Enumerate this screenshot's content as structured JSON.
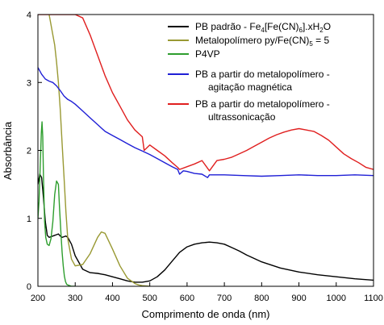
{
  "chart_data": {
    "type": "line",
    "xlabel": "Comprimento de onda (nm)",
    "ylabel": "Absorbância",
    "xlim": [
      200,
      1100
    ],
    "ylim": [
      0,
      4
    ],
    "xticks": [
      200,
      300,
      400,
      500,
      600,
      700,
      800,
      900,
      1000,
      1100
    ],
    "yticks": [
      0,
      1,
      2,
      3,
      4
    ],
    "grid": false,
    "legend_position": "top-right",
    "series": [
      {
        "name": "PB padrão - Fe4[Fe(CN)6].xH2O",
        "color": "#000000",
        "x": [
          200,
          205,
          210,
          215,
          220,
          225,
          230,
          235,
          240,
          245,
          250,
          255,
          260,
          265,
          270,
          275,
          280,
          290,
          300,
          320,
          340,
          360,
          380,
          400,
          420,
          440,
          460,
          480,
          500,
          520,
          540,
          560,
          580,
          600,
          620,
          640,
          660,
          680,
          700,
          720,
          740,
          760,
          780,
          800,
          850,
          900,
          950,
          1000,
          1050,
          1100
        ],
        "y": [
          1.5,
          1.65,
          1.6,
          1.3,
          0.95,
          0.75,
          0.72,
          0.73,
          0.74,
          0.75,
          0.76,
          0.77,
          0.74,
          0.72,
          0.73,
          0.74,
          0.72,
          0.62,
          0.45,
          0.25,
          0.2,
          0.19,
          0.17,
          0.14,
          0.11,
          0.08,
          0.06,
          0.06,
          0.08,
          0.14,
          0.24,
          0.37,
          0.5,
          0.58,
          0.62,
          0.64,
          0.65,
          0.64,
          0.62,
          0.57,
          0.52,
          0.46,
          0.41,
          0.36,
          0.27,
          0.21,
          0.17,
          0.14,
          0.11,
          0.09
        ]
      },
      {
        "name": "Metalopolímero py/Fe(CN)5 = 5",
        "color": "#999933",
        "x": [
          230,
          235,
          240,
          245,
          250,
          255,
          260,
          265,
          270,
          275,
          280,
          290,
          300,
          320,
          340,
          360,
          370,
          380,
          400,
          420,
          440,
          460,
          470,
          480,
          500
        ],
        "y": [
          4.0,
          3.85,
          3.7,
          3.55,
          3.3,
          3.0,
          2.6,
          2.1,
          1.6,
          1.1,
          0.7,
          0.4,
          0.3,
          0.32,
          0.48,
          0.72,
          0.8,
          0.78,
          0.55,
          0.3,
          0.12,
          0.04,
          0.02,
          0.01,
          0.0
        ]
      },
      {
        "name": "P4VP",
        "color": "#2e9e2e",
        "x": [
          200,
          203,
          206,
          209,
          211,
          213,
          215,
          218,
          221,
          225,
          230,
          235,
          240,
          245,
          250,
          255,
          258,
          262,
          265,
          268,
          271,
          274,
          277,
          280,
          285,
          290,
          300
        ],
        "y": [
          1.0,
          1.25,
          1.75,
          2.25,
          2.42,
          2.2,
          1.6,
          0.95,
          0.72,
          0.62,
          0.6,
          0.7,
          0.95,
          1.35,
          1.55,
          1.5,
          1.15,
          0.75,
          0.5,
          0.3,
          0.15,
          0.07,
          0.03,
          0.02,
          0.01,
          0.0,
          0.0
        ]
      },
      {
        "name": "PB a partir do metalopolímero - agitação magnética",
        "color": "#1f1fd6",
        "x": [
          200,
          210,
          220,
          230,
          240,
          250,
          260,
          270,
          280,
          290,
          300,
          320,
          340,
          360,
          380,
          400,
          420,
          440,
          460,
          480,
          500,
          520,
          540,
          560,
          575,
          580,
          590,
          600,
          620,
          640,
          655,
          660,
          680,
          700,
          750,
          800,
          850,
          900,
          950,
          1000,
          1050,
          1100
        ],
        "y": [
          3.22,
          3.12,
          3.05,
          3.02,
          3.0,
          2.95,
          2.88,
          2.8,
          2.75,
          2.72,
          2.68,
          2.58,
          2.48,
          2.38,
          2.28,
          2.22,
          2.16,
          2.1,
          2.04,
          1.99,
          1.94,
          1.88,
          1.82,
          1.76,
          1.72,
          1.65,
          1.7,
          1.69,
          1.66,
          1.65,
          1.6,
          1.64,
          1.64,
          1.64,
          1.63,
          1.62,
          1.63,
          1.64,
          1.63,
          1.63,
          1.64,
          1.63
        ]
      },
      {
        "name": "PB a partir do metalopolímero - ultrassonicação",
        "color": "#e01f1f",
        "x": [
          200,
          250,
          300,
          320,
          340,
          360,
          380,
          400,
          420,
          440,
          460,
          480,
          485,
          500,
          520,
          540,
          560,
          575,
          580,
          600,
          620,
          640,
          660,
          680,
          700,
          720,
          740,
          760,
          780,
          800,
          820,
          840,
          860,
          880,
          900,
          920,
          940,
          960,
          980,
          1000,
          1020,
          1040,
          1060,
          1080,
          1100
        ],
        "y": [
          4.0,
          4.0,
          4.0,
          3.95,
          3.7,
          3.4,
          3.1,
          2.85,
          2.65,
          2.45,
          2.3,
          2.2,
          2.0,
          2.08,
          2.0,
          1.92,
          1.82,
          1.75,
          1.72,
          1.76,
          1.8,
          1.85,
          1.7,
          1.85,
          1.87,
          1.9,
          1.95,
          2.0,
          2.06,
          2.12,
          2.18,
          2.23,
          2.27,
          2.3,
          2.32,
          2.3,
          2.28,
          2.22,
          2.15,
          2.05,
          1.95,
          1.88,
          1.82,
          1.75,
          1.72
        ]
      }
    ],
    "legend": {
      "entries": [
        {
          "lines": [
            "PB padrão - Fe",
            "4",
            "[Fe(CN)",
            "6",
            "].xH",
            "2",
            "O"
          ]
        },
        {
          "lines": [
            "Metalopolímero py/Fe(CN)",
            "5",
            " = 5"
          ]
        },
        {
          "lines": [
            "P4VP"
          ]
        },
        {
          "lines": [
            "PB a partir do metalopolímero -"
          ],
          "line2": "agitação magnética"
        },
        {
          "lines": [
            "PB a partir do metalopolímero -"
          ],
          "line2": "ultrassonicação"
        }
      ]
    }
  }
}
